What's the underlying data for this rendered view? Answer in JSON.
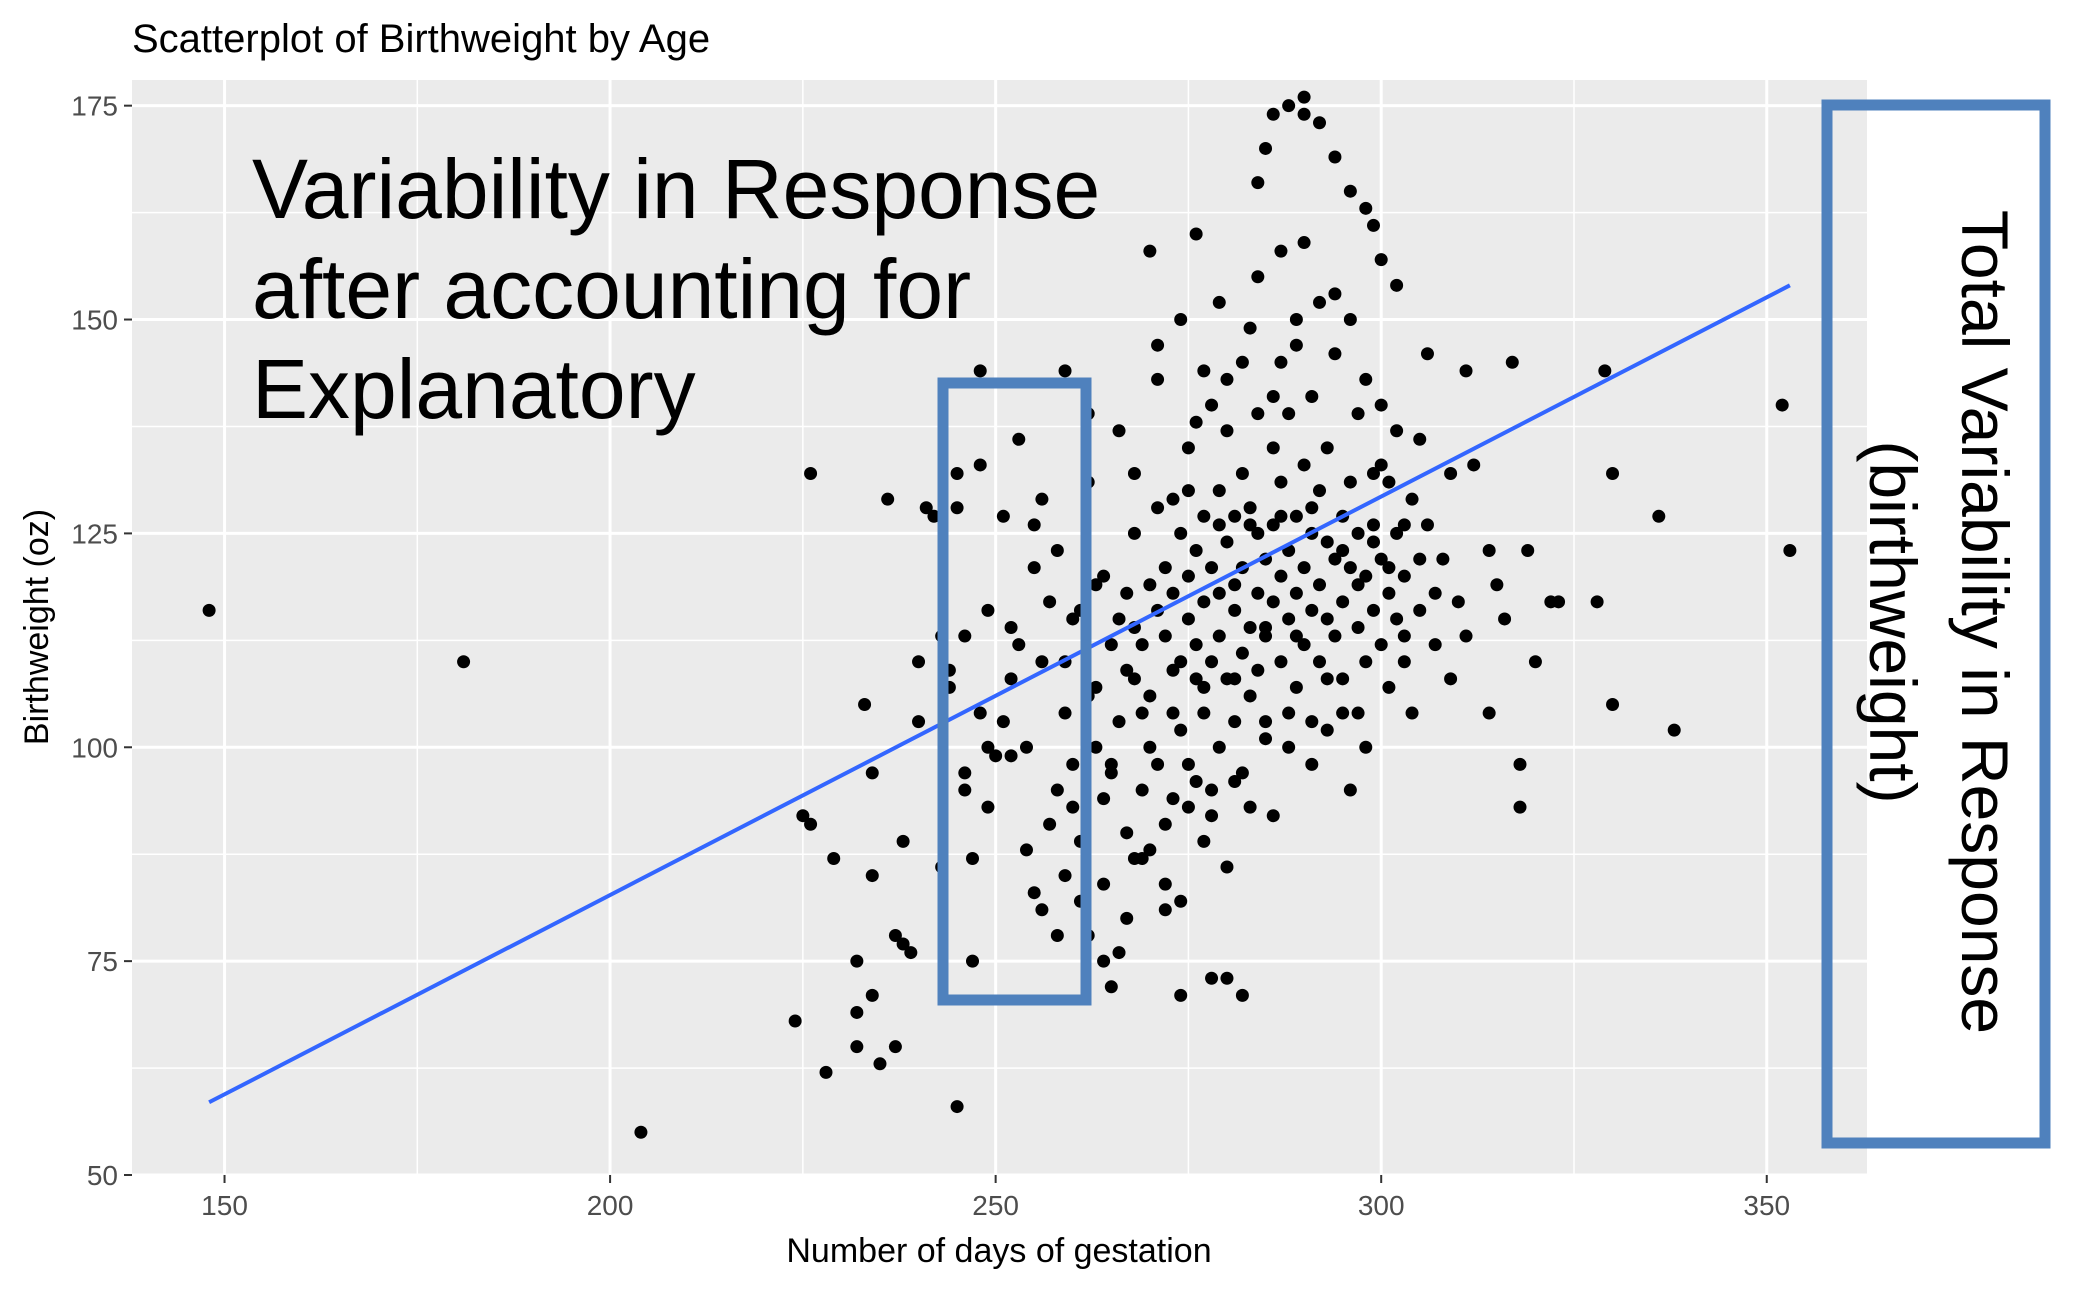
{
  "chart_data": {
    "type": "scatter",
    "title": "Scatterplot of Birthweight by Age",
    "xlabel": "Number of days of gestation",
    "ylabel": "Birthweight (oz)",
    "xlim": [
      138,
      363
    ],
    "ylim": [
      50,
      178
    ],
    "x_ticks": [
      150,
      200,
      250,
      300,
      350
    ],
    "y_ticks": [
      50,
      75,
      100,
      125,
      150,
      175
    ],
    "grid": true,
    "regression_line": {
      "x": [
        148,
        353
      ],
      "y": [
        58.5,
        154
      ]
    },
    "annotations": {
      "inner_box_text": [
        "Variability in Response",
        "after accounting for",
        "Explanatory"
      ],
      "outer_box_text": [
        "Total Variability in Response",
        "(birthweight)"
      ]
    },
    "colors": {
      "panel": "#ebebeb",
      "grid": "#ffffff",
      "points": "#000000",
      "line": "#3366ff",
      "box": "#4f81bd"
    },
    "points": [
      [
        148,
        116
      ],
      [
        181,
        110
      ],
      [
        204,
        55
      ],
      [
        224,
        68
      ],
      [
        225,
        92
      ],
      [
        226,
        91
      ],
      [
        226,
        132
      ],
      [
        228,
        62
      ],
      [
        229,
        87
      ],
      [
        232,
        75
      ],
      [
        232,
        69
      ],
      [
        232,
        65
      ],
      [
        233,
        105
      ],
      [
        234,
        71
      ],
      [
        234,
        97
      ],
      [
        234,
        85
      ],
      [
        235,
        63
      ],
      [
        236,
        129
      ],
      [
        237,
        65
      ],
      [
        237,
        78
      ],
      [
        238,
        89
      ],
      [
        238,
        77
      ],
      [
        239,
        76
      ],
      [
        240,
        103
      ],
      [
        241,
        128
      ],
      [
        242,
        127
      ],
      [
        243,
        86
      ],
      [
        244,
        109
      ],
      [
        244,
        107
      ],
      [
        245,
        58
      ],
      [
        245,
        132
      ],
      [
        245,
        128
      ],
      [
        246,
        113
      ],
      [
        246,
        95
      ],
      [
        247,
        75
      ],
      [
        247,
        87
      ],
      [
        248,
        144
      ],
      [
        248,
        104
      ],
      [
        249,
        93
      ],
      [
        249,
        100
      ],
      [
        250,
        99
      ],
      [
        251,
        103
      ],
      [
        252,
        114
      ],
      [
        252,
        99
      ],
      [
        253,
        112
      ],
      [
        253,
        136
      ],
      [
        254,
        100
      ],
      [
        254,
        88
      ],
      [
        255,
        83
      ],
      [
        255,
        126
      ],
      [
        256,
        110
      ],
      [
        256,
        81
      ],
      [
        257,
        117
      ],
      [
        257,
        91
      ],
      [
        258,
        123
      ],
      [
        258,
        78
      ],
      [
        259,
        104
      ],
      [
        259,
        144
      ],
      [
        259,
        85
      ],
      [
        260,
        98
      ],
      [
        260,
        115
      ],
      [
        260,
        93
      ],
      [
        261,
        89
      ],
      [
        261,
        82
      ],
      [
        262,
        106
      ],
      [
        262,
        139
      ],
      [
        262,
        78
      ],
      [
        263,
        100
      ],
      [
        263,
        119
      ],
      [
        264,
        94
      ],
      [
        264,
        84
      ],
      [
        265,
        112
      ],
      [
        265,
        97
      ],
      [
        265,
        72
      ],
      [
        266,
        115
      ],
      [
        266,
        103
      ],
      [
        267,
        118
      ],
      [
        267,
        90
      ],
      [
        267,
        80
      ],
      [
        268,
        114
      ],
      [
        268,
        108
      ],
      [
        268,
        125
      ],
      [
        269,
        95
      ],
      [
        269,
        112
      ],
      [
        270,
        106
      ],
      [
        270,
        158
      ],
      [
        270,
        119
      ],
      [
        270,
        100
      ],
      [
        271,
        116
      ],
      [
        271,
        98
      ],
      [
        271,
        143
      ],
      [
        272,
        121
      ],
      [
        272,
        113
      ],
      [
        272,
        91
      ],
      [
        273,
        104
      ],
      [
        273,
        118
      ],
      [
        273,
        129
      ],
      [
        273,
        94
      ],
      [
        274,
        110
      ],
      [
        274,
        125
      ],
      [
        274,
        102
      ],
      [
        274,
        82
      ],
      [
        275,
        115
      ],
      [
        275,
        120
      ],
      [
        275,
        135
      ],
      [
        275,
        98
      ],
      [
        276,
        108
      ],
      [
        276,
        123
      ],
      [
        276,
        112
      ],
      [
        276,
        160
      ],
      [
        277,
        117
      ],
      [
        277,
        104
      ],
      [
        277,
        127
      ],
      [
        277,
        89
      ],
      [
        278,
        121
      ],
      [
        278,
        110
      ],
      [
        278,
        140
      ],
      [
        278,
        95
      ],
      [
        279,
        113
      ],
      [
        279,
        130
      ],
      [
        279,
        118
      ],
      [
        279,
        100
      ],
      [
        280,
        124
      ],
      [
        280,
        108
      ],
      [
        280,
        143
      ],
      [
        280,
        86
      ],
      [
        281,
        116
      ],
      [
        281,
        127
      ],
      [
        281,
        103
      ],
      [
        281,
        119
      ],
      [
        282,
        111
      ],
      [
        282,
        132
      ],
      [
        282,
        121
      ],
      [
        282,
        97
      ],
      [
        283,
        128
      ],
      [
        283,
        114
      ],
      [
        283,
        149
      ],
      [
        283,
        106
      ],
      [
        284,
        118
      ],
      [
        284,
        139
      ],
      [
        284,
        109
      ],
      [
        284,
        125
      ],
      [
        285,
        122
      ],
      [
        285,
        113
      ],
      [
        285,
        170
      ],
      [
        285,
        101
      ],
      [
        286,
        126
      ],
      [
        286,
        117
      ],
      [
        286,
        135
      ],
      [
        286,
        92
      ],
      [
        287,
        120
      ],
      [
        287,
        131
      ],
      [
        287,
        110
      ],
      [
        287,
        145
      ],
      [
        288,
        123
      ],
      [
        288,
        115
      ],
      [
        288,
        139
      ],
      [
        288,
        100
      ],
      [
        289,
        127
      ],
      [
        289,
        118
      ],
      [
        289,
        150
      ],
      [
        289,
        107
      ],
      [
        290,
        121
      ],
      [
        290,
        133
      ],
      [
        290,
        112
      ],
      [
        290,
        176
      ],
      [
        291,
        125
      ],
      [
        291,
        116
      ],
      [
        291,
        141
      ],
      [
        291,
        98
      ],
      [
        292,
        119
      ],
      [
        292,
        130
      ],
      [
        292,
        110
      ],
      [
        293,
        124
      ],
      [
        293,
        135
      ],
      [
        293,
        102
      ],
      [
        294,
        122
      ],
      [
        294,
        113
      ],
      [
        294,
        146
      ],
      [
        295,
        127
      ],
      [
        295,
        117
      ],
      [
        295,
        108
      ],
      [
        296,
        131
      ],
      [
        296,
        121
      ],
      [
        296,
        95
      ],
      [
        297,
        125
      ],
      [
        297,
        114
      ],
      [
        297,
        139
      ],
      [
        298,
        120
      ],
      [
        298,
        110
      ],
      [
        298,
        100
      ],
      [
        299,
        126
      ],
      [
        299,
        116
      ],
      [
        299,
        161
      ],
      [
        300,
        122
      ],
      [
        300,
        112
      ],
      [
        300,
        133
      ],
      [
        301,
        118
      ],
      [
        301,
        107
      ],
      [
        302,
        125
      ],
      [
        302,
        115
      ],
      [
        303,
        120
      ],
      [
        303,
        110
      ],
      [
        304,
        104
      ],
      [
        304,
        129
      ],
      [
        305,
        116
      ],
      [
        306,
        126
      ],
      [
        306,
        146
      ],
      [
        307,
        112
      ],
      [
        308,
        122
      ],
      [
        309,
        108
      ],
      [
        310,
        117
      ],
      [
        311,
        144
      ],
      [
        312,
        133
      ],
      [
        314,
        123
      ],
      [
        314,
        104
      ],
      [
        315,
        119
      ],
      [
        316,
        115
      ],
      [
        317,
        145
      ],
      [
        318,
        98
      ],
      [
        318,
        93
      ],
      [
        319,
        123
      ],
      [
        320,
        110
      ],
      [
        322,
        117
      ],
      [
        323,
        117
      ],
      [
        328,
        117
      ],
      [
        329,
        144
      ],
      [
        330,
        132
      ],
      [
        330,
        105
      ],
      [
        336,
        127
      ],
      [
        338,
        102
      ],
      [
        352,
        140
      ],
      [
        353,
        123
      ],
      [
        248,
        133
      ],
      [
        251,
        127
      ],
      [
        256,
        129
      ],
      [
        259,
        110
      ],
      [
        262,
        131
      ],
      [
        264,
        120
      ],
      [
        266,
        137
      ],
      [
        268,
        132
      ],
      [
        269,
        87
      ],
      [
        271,
        147
      ],
      [
        272,
        84
      ],
      [
        274,
        150
      ],
      [
        275,
        93
      ],
      [
        276,
        138
      ],
      [
        277,
        144
      ],
      [
        278,
        92
      ],
      [
        279,
        152
      ],
      [
        280,
        137
      ],
      [
        281,
        96
      ],
      [
        282,
        145
      ],
      [
        283,
        93
      ],
      [
        284,
        155
      ],
      [
        285,
        103
      ],
      [
        286,
        141
      ],
      [
        287,
        158
      ],
      [
        288,
        104
      ],
      [
        289,
        147
      ],
      [
        290,
        159
      ],
      [
        291,
        103
      ],
      [
        292,
        152
      ],
      [
        293,
        108
      ],
      [
        294,
        153
      ],
      [
        295,
        104
      ],
      [
        296,
        150
      ],
      [
        297,
        104
      ],
      [
        298,
        143
      ],
      [
        299,
        132
      ],
      [
        300,
        140
      ],
      [
        301,
        131
      ],
      [
        302,
        137
      ],
      [
        303,
        113
      ],
      [
        305,
        136
      ],
      [
        307,
        118
      ],
      [
        309,
        132
      ],
      [
        311,
        113
      ],
      [
        264,
        75
      ],
      [
        266,
        76
      ],
      [
        268,
        87
      ],
      [
        270,
        88
      ],
      [
        272,
        81
      ],
      [
        274,
        71
      ],
      [
        276,
        96
      ],
      [
        278,
        73
      ],
      [
        280,
        73
      ],
      [
        282,
        71
      ],
      [
        284,
        166
      ],
      [
        286,
        174
      ],
      [
        288,
        175
      ],
      [
        290,
        174
      ],
      [
        292,
        173
      ],
      [
        294,
        169
      ],
      [
        296,
        165
      ],
      [
        298,
        163
      ],
      [
        300,
        157
      ],
      [
        302,
        154
      ],
      [
        240,
        110
      ],
      [
        243,
        113
      ],
      [
        246,
        97
      ],
      [
        249,
        116
      ],
      [
        252,
        108
      ],
      [
        255,
        121
      ],
      [
        258,
        95
      ],
      [
        261,
        116
      ],
      [
        263,
        107
      ],
      [
        265,
        98
      ],
      [
        267,
        109
      ],
      [
        269,
        104
      ],
      [
        271,
        128
      ],
      [
        273,
        109
      ],
      [
        275,
        130
      ],
      [
        277,
        107
      ],
      [
        279,
        126
      ],
      [
        281,
        108
      ],
      [
        283,
        126
      ],
      [
        285,
        114
      ],
      [
        287,
        127
      ],
      [
        289,
        113
      ],
      [
        291,
        128
      ],
      [
        293,
        115
      ],
      [
        295,
        123
      ],
      [
        297,
        119
      ],
      [
        299,
        124
      ],
      [
        301,
        121
      ],
      [
        303,
        126
      ],
      [
        305,
        122
      ]
    ]
  }
}
